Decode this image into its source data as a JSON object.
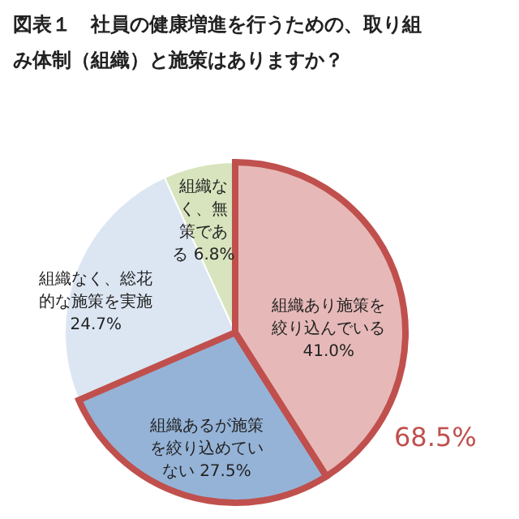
{
  "chart_data": {
    "type": "pie",
    "title": "図表１　社員の健康増進を行うための、取り組み体制（組織）と施策はありますか？",
    "categories": [
      "組織あり施策を絞り込んでいる",
      "組織あるが施策を絞り込めていない",
      "組織なく、総花的な施策を実施",
      "組織なく、無策である"
    ],
    "values": [
      41.0,
      27.5,
      24.7,
      6.8
    ],
    "value_labels": [
      "41.0%",
      "27.5%",
      "24.7%",
      "6.8%"
    ],
    "colors": [
      "#e6b9b8",
      "#95b3d7",
      "#dce6f2",
      "#d7e4bd"
    ],
    "annotations": [
      "68.5%"
    ]
  }
}
